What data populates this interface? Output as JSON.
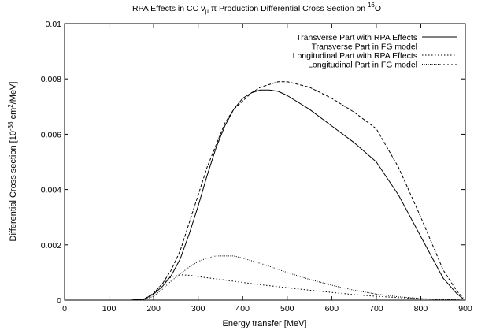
{
  "chart_data": {
    "type": "line",
    "title": {
      "prefix": "RPA Effects in CC ν",
      "nu_subscript": "μ",
      "middle": " π Production Differential Cross Section on ",
      "isotope_superscript": "16",
      "element": "O"
    },
    "xlabel": "Energy transfer [MeV]",
    "ylabel": {
      "prefix": "Differential Cross section [10",
      "exp": "-38",
      "middle": " cm",
      "exp2": "2",
      "suffix": "/MeV]"
    },
    "xlim": [
      0,
      900
    ],
    "ylim": [
      0,
      0.01
    ],
    "xticks": [
      "0",
      "100",
      "200",
      "300",
      "400",
      "500",
      "600",
      "700",
      "800",
      "900"
    ],
    "yticks": [
      "0",
      "0.002",
      "0.004",
      "0.006",
      "0.008",
      "0.01"
    ],
    "grid": false,
    "legend_position": "top-right",
    "series": [
      {
        "name": "Transverse Part with RPA Effects",
        "dash": "solid",
        "x": [
          0,
          150,
          180,
          200,
          220,
          240,
          260,
          280,
          300,
          320,
          340,
          360,
          380,
          400,
          420,
          440,
          460,
          480,
          500,
          550,
          600,
          650,
          700,
          750,
          800,
          850,
          880,
          895
        ],
        "y": [
          0,
          0,
          5e-05,
          0.00022,
          0.0005,
          0.0009,
          0.0015,
          0.0024,
          0.0034,
          0.0045,
          0.0055,
          0.0063,
          0.0069,
          0.0073,
          0.0075,
          0.0076,
          0.0076,
          0.00755,
          0.0074,
          0.0069,
          0.0063,
          0.0057,
          0.005,
          0.0038,
          0.0023,
          0.0008,
          0.00025,
          5e-05
        ]
      },
      {
        "name": "Transverse Part in FG model",
        "dash": "dashed",
        "x": [
          0,
          150,
          180,
          200,
          220,
          240,
          260,
          280,
          300,
          320,
          340,
          360,
          380,
          400,
          420,
          440,
          460,
          480,
          500,
          550,
          600,
          650,
          700,
          750,
          800,
          850,
          880,
          895
        ],
        "y": [
          0,
          0,
          5e-05,
          0.00025,
          0.0006,
          0.0011,
          0.0018,
          0.0028,
          0.0038,
          0.0048,
          0.0056,
          0.0064,
          0.0069,
          0.0072,
          0.0075,
          0.0077,
          0.0078,
          0.0079,
          0.0079,
          0.0077,
          0.0073,
          0.0068,
          0.0062,
          0.0048,
          0.003,
          0.0011,
          0.00035,
          8e-05
        ]
      },
      {
        "name": "Longitudinal Part with RPA Effects",
        "dash": "dotted",
        "x": [
          0,
          150,
          180,
          200,
          220,
          240,
          260,
          280,
          300,
          350,
          400,
          450,
          500,
          550,
          600,
          650,
          700,
          750,
          800,
          850,
          880,
          895
        ],
        "y": [
          0,
          0,
          3e-05,
          0.00025,
          0.0006,
          0.00085,
          0.00092,
          0.0009,
          0.00085,
          0.00075,
          0.00064,
          0.00054,
          0.00045,
          0.00036,
          0.00028,
          0.0002,
          0.00014,
          9e-05,
          5e-05,
          2e-05,
          1e-05,
          0
        ]
      },
      {
        "name": "Longitudinal Part in FG model",
        "dash": "fine-dotted",
        "x": [
          0,
          150,
          180,
          200,
          220,
          240,
          260,
          280,
          300,
          320,
          340,
          360,
          380,
          400,
          450,
          500,
          550,
          600,
          650,
          700,
          750,
          800,
          850,
          880,
          895
        ],
        "y": [
          0,
          0,
          2e-05,
          0.00015,
          0.0004,
          0.0007,
          0.00095,
          0.0012,
          0.0014,
          0.00152,
          0.0016,
          0.0016,
          0.0016,
          0.00152,
          0.00128,
          0.001,
          0.00075,
          0.00054,
          0.00036,
          0.00022,
          0.00012,
          6e-05,
          2e-05,
          1e-05,
          0
        ]
      }
    ]
  }
}
